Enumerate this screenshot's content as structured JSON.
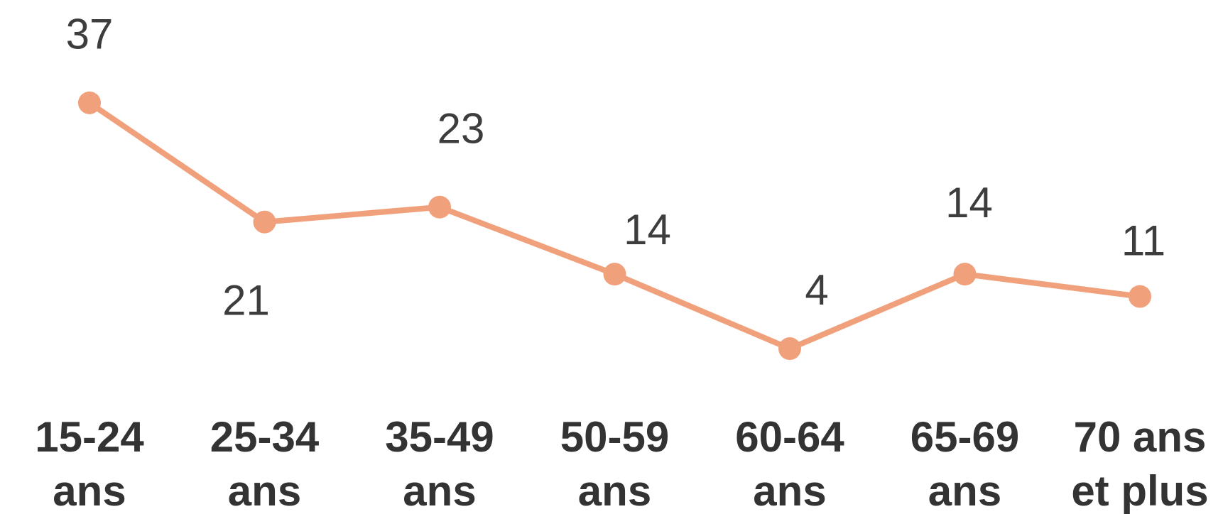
{
  "chart_data": {
    "type": "line",
    "categories": [
      "15-24 ans",
      "25-34 ans",
      "35-49 ans",
      "50-59 ans",
      "60-64 ans",
      "65-69 ans",
      "70 ans et plus"
    ],
    "series": [
      {
        "color": "#f0a17c",
        "values": [
          37,
          21,
          23,
          14,
          4,
          14,
          11
        ]
      }
    ]
  }
}
